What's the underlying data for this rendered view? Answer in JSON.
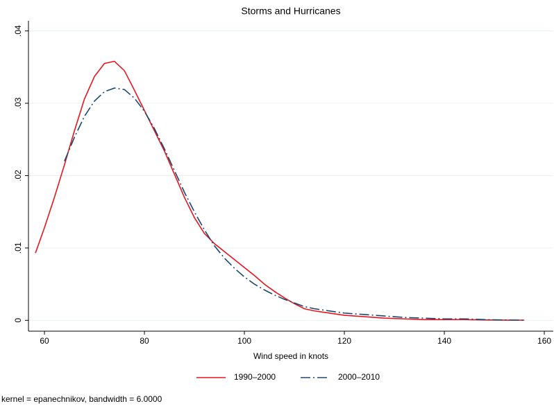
{
  "chart_data": {
    "type": "line",
    "title": "Storms and Hurricanes",
    "x_label": "Wind speed in knots",
    "note": "kernel = epanechnikov, bandwidth = 6.0000",
    "x": [
      58.2,
      60,
      62,
      64,
      66,
      68,
      70,
      72,
      74,
      76,
      78,
      80,
      82,
      84,
      86,
      88,
      90,
      92,
      94,
      96,
      98,
      100,
      102,
      104,
      106,
      108,
      110,
      112,
      114,
      116,
      118,
      120,
      124,
      128,
      132,
      136,
      140,
      144,
      148,
      152,
      156
    ],
    "series": [
      {
        "name": "1990–2000",
        "color": "#e8141d",
        "dash": "solid",
        "values": [
          0.0093,
          0.0128,
          0.017,
          0.0215,
          0.0262,
          0.0306,
          0.0337,
          0.0355,
          0.0358,
          0.0345,
          0.0318,
          0.029,
          0.0262,
          0.0234,
          0.0202,
          0.017,
          0.0142,
          0.012,
          0.0106,
          0.0095,
          0.0084,
          0.0073,
          0.0062,
          0.005,
          0.004,
          0.0031,
          0.0023,
          0.0016,
          0.0013,
          0.0011,
          0.0009,
          0.0007,
          0.0005,
          0.0003,
          0.0002,
          0.0001,
          0.0001,
          0.0001,
          5e-05,
          3e-05,
          2e-05
        ]
      },
      {
        "name": "2000–2010",
        "color": "#1a476f",
        "dash": "longdash-dot",
        "values": [
          null,
          null,
          null,
          0.022,
          0.0253,
          0.0282,
          0.0303,
          0.0316,
          0.0321,
          0.0319,
          0.0307,
          0.0289,
          0.0265,
          0.0237,
          0.0207,
          0.0177,
          0.015,
          0.0125,
          0.0103,
          0.0086,
          0.0072,
          0.006,
          0.005,
          0.0042,
          0.0035,
          0.0029,
          0.0024,
          0.0019,
          0.0016,
          0.0014,
          0.0012,
          0.001,
          0.0008,
          0.0006,
          0.0004,
          0.0003,
          0.0002,
          0.0002,
          0.0001,
          5e-05,
          2e-05
        ]
      }
    ],
    "xlim": [
      56.8,
      161.8
    ],
    "xticks": [
      60,
      80,
      100,
      120,
      140,
      160
    ],
    "ylim": [
      -0.0015,
      0.0414
    ],
    "yticks": [
      0,
      {
        "value": 0.01,
        "label": ".01"
      },
      {
        "value": 0.02,
        "label": ".02"
      },
      {
        "value": 0.03,
        "label": ".03"
      },
      {
        "value": 0.04,
        "label": ".04"
      }
    ],
    "grid": true,
    "legend": "bottom"
  }
}
